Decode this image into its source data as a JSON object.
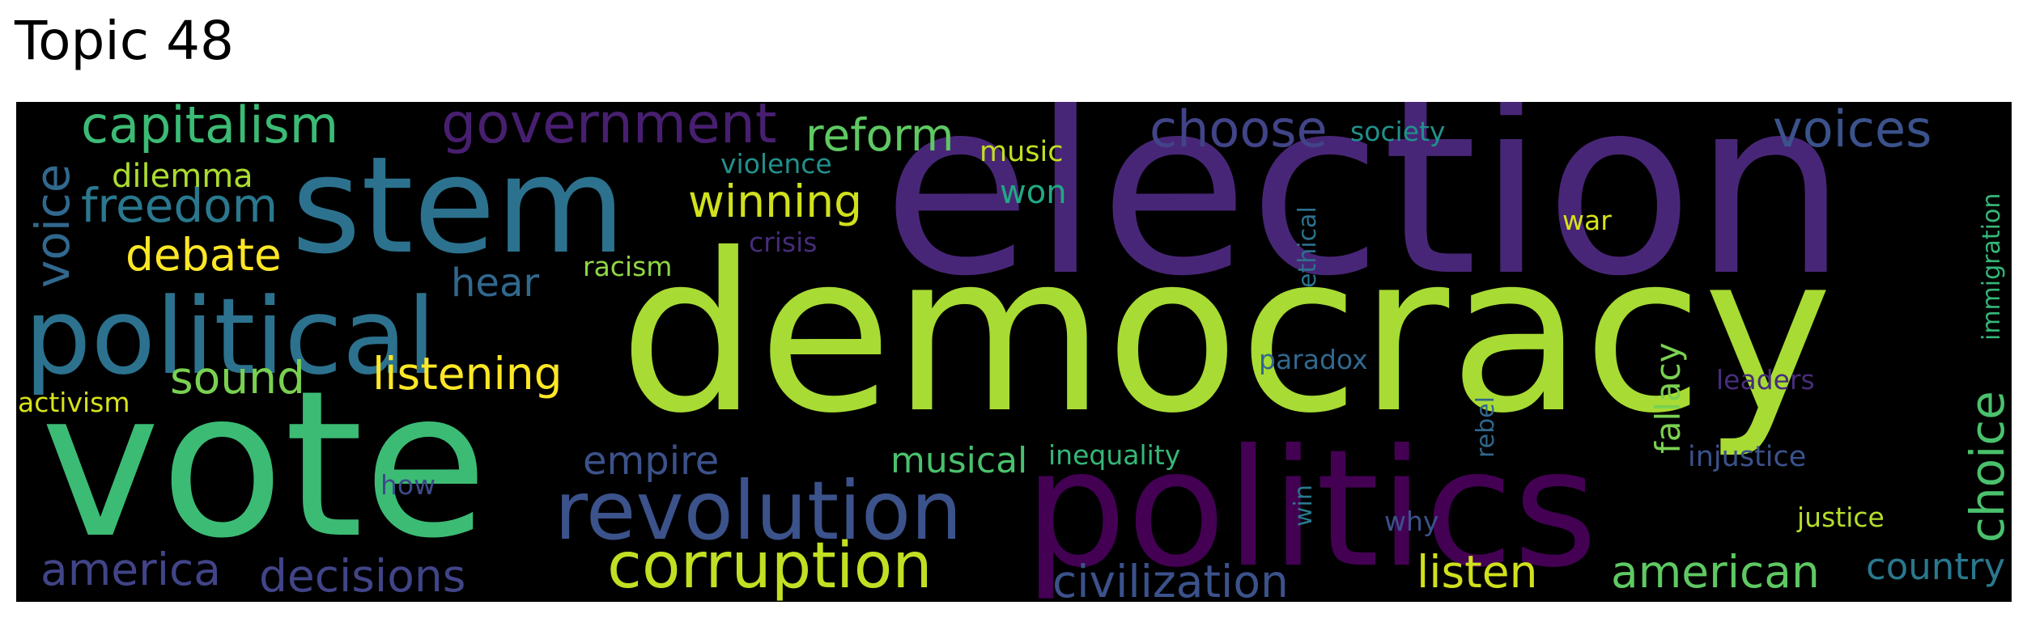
{
  "title": "Topic 48",
  "cloud_background": "#000000",
  "words": [
    {
      "text": "election",
      "color": "#482677"
    },
    {
      "text": "democracy",
      "color": "#a8db34"
    },
    {
      "text": "vote",
      "color": "#3cbb75"
    },
    {
      "text": "politics",
      "color": "#440154"
    },
    {
      "text": "stem",
      "color": "#2c728e"
    },
    {
      "text": "political",
      "color": "#2c728e"
    },
    {
      "text": "revolution",
      "color": "#3b528b"
    },
    {
      "text": "corruption",
      "color": "#c2df23"
    },
    {
      "text": "government",
      "color": "#481f70"
    },
    {
      "text": "capitalism",
      "color": "#3cbb75"
    },
    {
      "text": "voices",
      "color": "#3b528b"
    },
    {
      "text": "choose",
      "color": "#414487"
    },
    {
      "text": "reform",
      "color": "#5ec962"
    },
    {
      "text": "freedom",
      "color": "#2a788e"
    },
    {
      "text": "voice",
      "color": "#31688e"
    },
    {
      "text": "winning",
      "color": "#d0e11c"
    },
    {
      "text": "decisions",
      "color": "#414487"
    },
    {
      "text": "america",
      "color": "#414487"
    },
    {
      "text": "listen",
      "color": "#d0e11c"
    },
    {
      "text": "american",
      "color": "#5ec962"
    },
    {
      "text": "civilization",
      "color": "#3b528b"
    },
    {
      "text": "listening",
      "color": "#fde725"
    },
    {
      "text": "sound",
      "color": "#7ad151"
    },
    {
      "text": "choice",
      "color": "#4ac16d"
    },
    {
      "text": "debate",
      "color": "#fde725"
    },
    {
      "text": "empire",
      "color": "#3b528b"
    },
    {
      "text": "country",
      "color": "#2a788e"
    },
    {
      "text": "musical",
      "color": "#4ac16d"
    },
    {
      "text": "hear",
      "color": "#31688e"
    },
    {
      "text": "dilemma",
      "color": "#addc30"
    },
    {
      "text": "won",
      "color": "#22a884"
    },
    {
      "text": "fallacy",
      "color": "#7ad151"
    },
    {
      "text": "injustice",
      "color": "#3b528b"
    },
    {
      "text": "music",
      "color": "#c2df23"
    },
    {
      "text": "society",
      "color": "#21918c"
    },
    {
      "text": "violence",
      "color": "#21918c"
    },
    {
      "text": "inequality",
      "color": "#35b779"
    },
    {
      "text": "paradox",
      "color": "#31688e"
    },
    {
      "text": "justice",
      "color": "#b5de2b"
    },
    {
      "text": "leaders",
      "color": "#472d7b"
    },
    {
      "text": "immigration",
      "color": "#35b779"
    },
    {
      "text": "ethical",
      "color": "#2c728e"
    },
    {
      "text": "crisis",
      "color": "#472c7a"
    },
    {
      "text": "racism",
      "color": "#8fd744"
    },
    {
      "text": "activism",
      "color": "#d8e219"
    },
    {
      "text": "rebel",
      "color": "#31688e"
    },
    {
      "text": "war",
      "color": "#d8e219"
    },
    {
      "text": "why",
      "color": "#3b528b"
    },
    {
      "text": "win",
      "color": "#2a788e"
    },
    {
      "text": "how",
      "color": "#3e4a89"
    }
  ]
}
